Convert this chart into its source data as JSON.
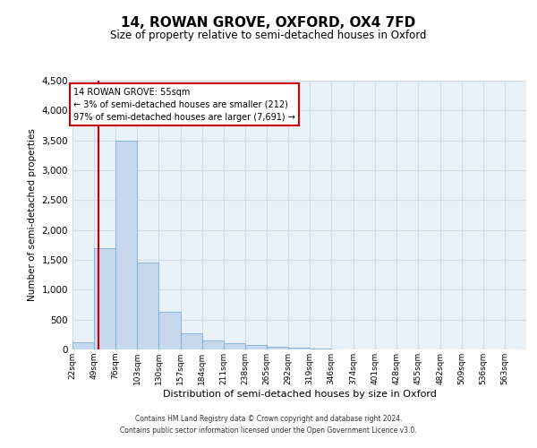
{
  "title": "14, ROWAN GROVE, OXFORD, OX4 7FD",
  "subtitle": "Size of property relative to semi-detached houses in Oxford",
  "xlabel": "Distribution of semi-detached houses by size in Oxford",
  "ylabel": "Number of semi-detached properties",
  "annotation_title": "14 ROWAN GROVE: 55sqm",
  "annotation_line1": "← 3% of semi-detached houses are smaller (212)",
  "annotation_line2": "97% of semi-detached houses are larger (7,691) →",
  "property_size": 55,
  "footer_line1": "Contains HM Land Registry data © Crown copyright and database right 2024.",
  "footer_line2": "Contains public sector information licensed under the Open Government Licence v3.0.",
  "bin_labels": [
    "22sqm",
    "49sqm",
    "76sqm",
    "103sqm",
    "130sqm",
    "157sqm",
    "184sqm",
    "211sqm",
    "238sqm",
    "265sqm",
    "292sqm",
    "319sqm",
    "346sqm",
    "374sqm",
    "401sqm",
    "428sqm",
    "455sqm",
    "482sqm",
    "509sqm",
    "536sqm",
    "563sqm"
  ],
  "bin_edges": [
    22,
    49,
    76,
    103,
    130,
    157,
    184,
    211,
    238,
    265,
    292,
    319,
    346,
    374,
    401,
    428,
    455,
    482,
    509,
    536,
    563
  ],
  "bar_values": [
    125,
    1700,
    3500,
    1450,
    625,
    275,
    150,
    100,
    75,
    50,
    25,
    15,
    5,
    3,
    1,
    0,
    0,
    0,
    0,
    0
  ],
  "bar_color": "#c5d8ed",
  "bar_edge_color": "#7aaed6",
  "grid_color": "#d0dce8",
  "background_color": "#e8f0f8",
  "vline_color": "#cc0000",
  "box_color": "#cc0000",
  "ylim": [
    0,
    4500
  ],
  "yticks": [
    0,
    500,
    1000,
    1500,
    2000,
    2500,
    3000,
    3500,
    4000,
    4500
  ]
}
